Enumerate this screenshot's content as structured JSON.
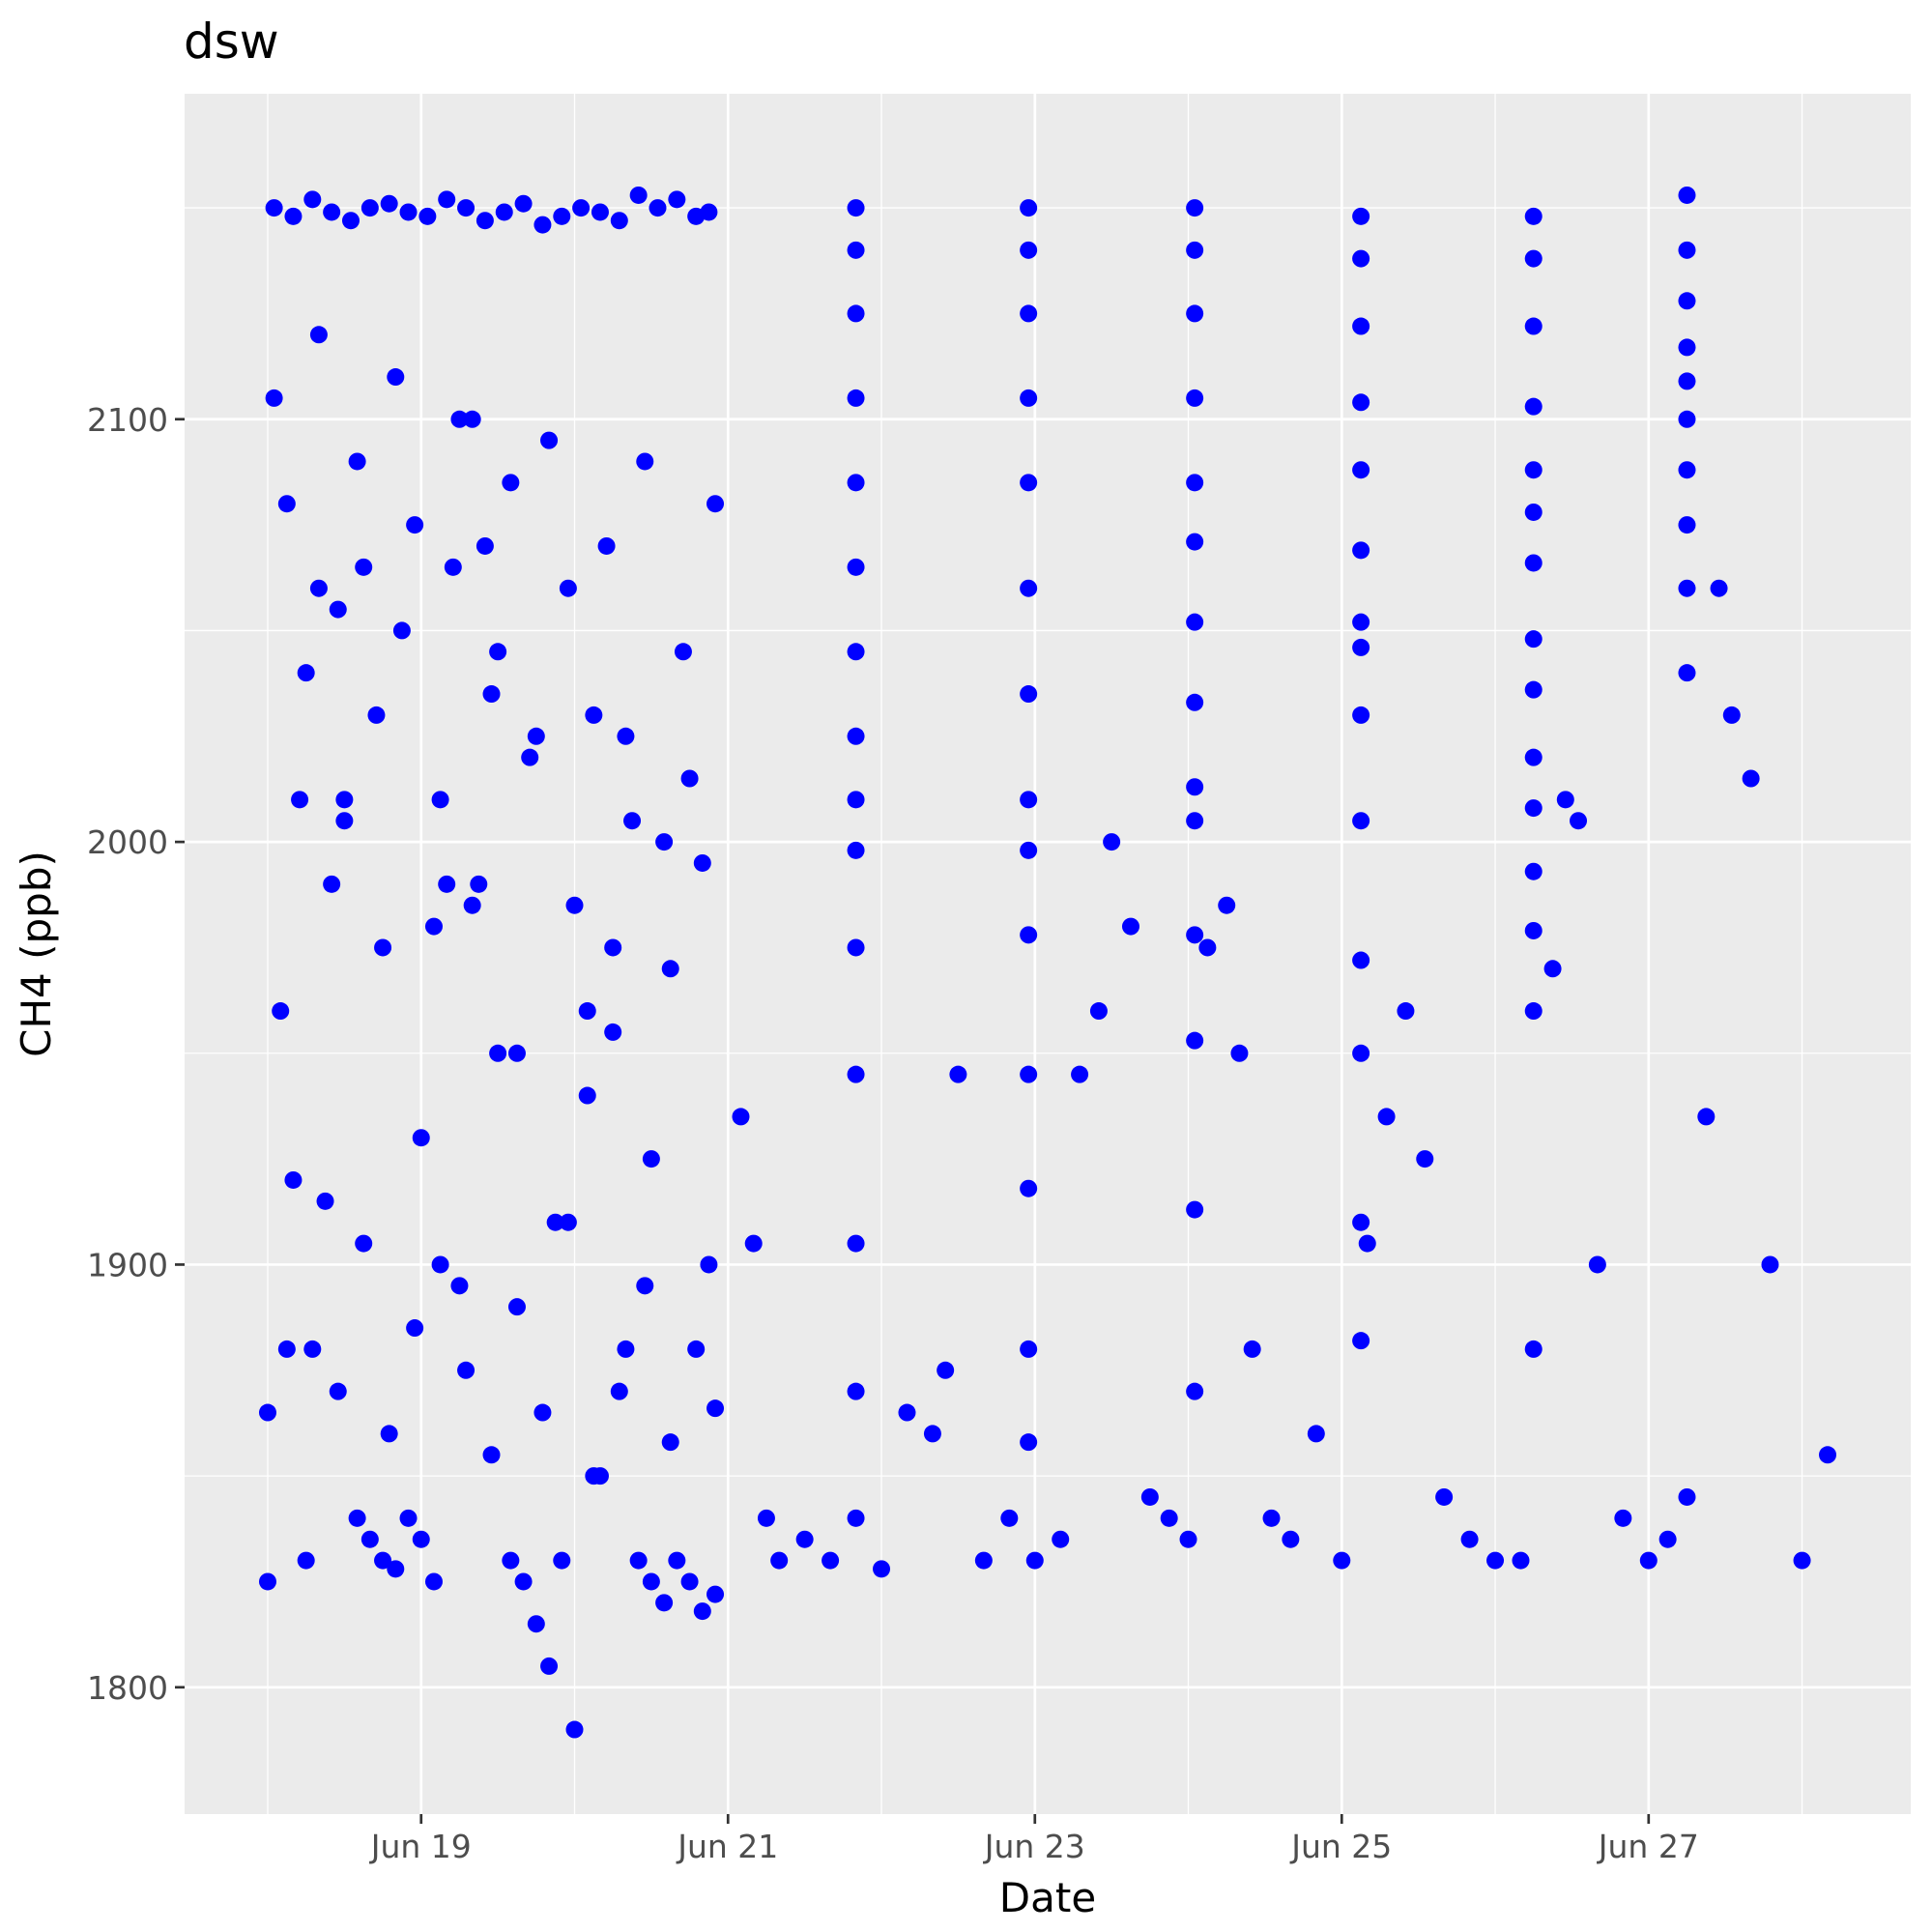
{
  "chart_data": {
    "type": "scatter",
    "title": "dsw",
    "xlabel": "Date",
    "ylabel": "CH4 (ppb)",
    "x_axis_type": "date",
    "xlim": [
      "2021-06-17T11:00",
      "2021-06-28T17:00"
    ],
    "ylim": [
      1770,
      2177
    ],
    "x_ticks": [
      {
        "value": "2021-06-19",
        "label": "Jun 19"
      },
      {
        "value": "2021-06-21",
        "label": "Jun 21"
      },
      {
        "value": "2021-06-23",
        "label": "Jun 23"
      },
      {
        "value": "2021-06-25",
        "label": "Jun 25"
      },
      {
        "value": "2021-06-27",
        "label": "Jun 27"
      }
    ],
    "y_ticks": [
      {
        "value": 1800,
        "label": "1800"
      },
      {
        "value": 1900,
        "label": "1900"
      },
      {
        "value": 2000,
        "label": "2000"
      },
      {
        "value": 2100,
        "label": "2100"
      }
    ],
    "grid": true,
    "legend": "none",
    "series": [
      {
        "color": "#0000ff",
        "x": [
          "2021-06-18T00:00",
          "2021-06-18T03:00",
          "2021-06-18T06:00",
          "2021-06-18T08:00",
          "2021-06-18T10:00",
          "2021-06-18T12:00",
          "2021-06-18T14:00",
          "2021-06-18T16:00",
          "2021-06-18T18:00",
          "2021-06-18T20:00",
          "2021-06-18T22:00",
          "2021-06-19T00:00",
          "2021-06-19T02:00",
          "2021-06-19T04:00",
          "2021-06-19T06:00",
          "2021-06-19T08:00",
          "2021-06-19T10:00",
          "2021-06-19T12:00",
          "2021-06-19T14:00",
          "2021-06-19T16:00",
          "2021-06-19T18:00",
          "2021-06-19T20:00",
          "2021-06-19T22:00",
          "2021-06-20T00:00",
          "2021-06-20T02:00",
          "2021-06-20T04:00",
          "2021-06-20T06:00",
          "2021-06-20T08:00",
          "2021-06-20T10:00",
          "2021-06-20T12:00",
          "2021-06-20T14:00",
          "2021-06-20T16:00",
          "2021-06-20T18:00",
          "2021-06-20T20:00",
          "2021-06-20T22:00",
          "2021-06-21T02:00",
          "2021-06-21T04:00",
          "2021-06-21T06:00",
          "2021-06-21T08:00",
          "2021-06-21T12:00",
          "2021-06-21T16:00",
          "2021-06-21T20:00",
          "2021-06-22T00:00",
          "2021-06-22T04:00",
          "2021-06-22T08:00",
          "2021-06-22T10:00",
          "2021-06-22T12:00",
          "2021-06-22T16:00",
          "2021-06-22T20:00",
          "2021-06-23T00:00",
          "2021-06-23T04:00",
          "2021-06-23T07:00",
          "2021-06-23T10:00",
          "2021-06-23T12:00",
          "2021-06-23T15:00",
          "2021-06-23T18:00",
          "2021-06-23T21:00",
          "2021-06-24T00:00",
          "2021-06-24T03:00",
          "2021-06-24T06:00",
          "2021-06-24T08:00",
          "2021-06-24T10:00",
          "2021-06-24T13:00",
          "2021-06-24T16:00",
          "2021-06-24T20:00",
          "2021-06-25T00:00",
          "2021-06-25T04:00",
          "2021-06-25T07:00",
          "2021-06-25T10:00",
          "2021-06-25T13:00",
          "2021-06-25T16:00",
          "2021-06-25T20:00",
          "2021-06-26T00:00",
          "2021-06-26T04:00",
          "2021-06-26T06:00",
          "2021-06-26T09:00",
          "2021-06-26T11:00",
          "2021-06-26T13:00",
          "2021-06-26T16:00",
          "2021-06-26T20:00",
          "2021-06-27T00:00",
          "2021-06-27T03:00",
          "2021-06-27T06:00",
          "2021-06-27T09:00",
          "2021-06-27T11:00",
          "2021-06-27T13:00",
          "2021-06-27T16:00",
          "2021-06-27T19:00",
          "2021-06-28T00:00",
          "2021-06-28T04:00"
        ],
        "y": [
          1825,
          1880,
          1830,
          2060,
          1990,
          2010,
          1840,
          1835,
          1830,
          1828,
          1840,
          1835,
          1825,
          1990,
          2100,
          1985,
          2070,
          1950,
          1830,
          1825,
          1815,
          1805,
          1830,
          1790,
          1960,
          1850,
          1975,
          1880,
          1830,
          1825,
          1820,
          1830,
          1825,
          1818,
          1822,
          1935,
          1905,
          1840,
          1830,
          1835,
          1830,
          1840,
          1828,
          1865,
          1860,
          1875,
          1945,
          1830,
          1840,
          1830,
          1835,
          1945,
          1960,
          2000,
          1980,
          1845,
          1840,
          1835,
          1975,
          1985,
          1950,
          1880,
          1840,
          1835,
          1860,
          1830,
          1905,
          1935,
          1960,
          1925,
          1845,
          1835,
          1830,
          1830,
          1880,
          1970,
          2010,
          2005,
          1900,
          1840,
          1830,
          1835,
          1845,
          1935,
          2060,
          2030,
          2015,
          1900,
          1830,
          1855
        ]
      },
      {
        "color": "#0000ff",
        "x": [
          "2021-06-18T01:00",
          "2021-06-18T04:00",
          "2021-06-18T07:00",
          "2021-06-18T10:00",
          "2021-06-18T13:00",
          "2021-06-18T16:00",
          "2021-06-18T19:00",
          "2021-06-18T22:00",
          "2021-06-19T01:00",
          "2021-06-19T04:00",
          "2021-06-19T07:00",
          "2021-06-19T10:00",
          "2021-06-19T13:00",
          "2021-06-19T16:00",
          "2021-06-19T19:00",
          "2021-06-19T22:00",
          "2021-06-20T01:00",
          "2021-06-20T04:00",
          "2021-06-20T07:00",
          "2021-06-20T10:00",
          "2021-06-20T13:00",
          "2021-06-20T16:00",
          "2021-06-20T19:00",
          "2021-06-20T21:00"
        ],
        "y": [
          2150,
          2148,
          2152,
          2149,
          2147,
          2150,
          2151,
          2149,
          2148,
          2152,
          2150,
          2147,
          2149,
          2151,
          2146,
          2148,
          2150,
          2149,
          2147,
          2153,
          2150,
          2152,
          2148,
          2149
        ]
      },
      {
        "color": "#0000ff",
        "x": [
          "2021-06-18T01:00",
          "2021-06-18T03:00",
          "2021-06-18T05:00",
          "2021-06-18T08:00",
          "2021-06-18T11:00",
          "2021-06-18T14:00",
          "2021-06-18T17:00",
          "2021-06-18T20:00",
          "2021-06-18T23:00",
          "2021-06-19T02:00",
          "2021-06-19T05:00",
          "2021-06-19T08:00",
          "2021-06-19T11:00",
          "2021-06-19T14:00",
          "2021-06-19T17:00",
          "2021-06-19T20:00",
          "2021-06-19T23:00",
          "2021-06-20T02:00",
          "2021-06-20T05:00",
          "2021-06-20T08:00",
          "2021-06-20T11:00",
          "2021-06-20T14:00",
          "2021-06-20T17:00",
          "2021-06-20T20:00",
          "2021-06-20T22:00",
          "2021-06-18T02:00",
          "2021-06-18T06:00",
          "2021-06-18T09:00",
          "2021-06-18T12:00",
          "2021-06-18T15:00",
          "2021-06-18T18:00",
          "2021-06-18T21:00",
          "2021-06-19T00:00",
          "2021-06-19T03:00",
          "2021-06-19T06:00",
          "2021-06-19T09:00",
          "2021-06-19T12:00",
          "2021-06-19T15:00",
          "2021-06-19T18:00",
          "2021-06-19T21:00",
          "2021-06-20T00:00",
          "2021-06-20T03:00",
          "2021-06-20T06:00",
          "2021-06-20T09:00",
          "2021-06-20T12:00",
          "2021-06-20T15:00",
          "2021-06-20T18:00",
          "2021-06-20T21:00"
        ],
        "y": [
          2105,
          2080,
          2010,
          2120,
          2055,
          2090,
          2030,
          2110,
          2075,
          1980,
          2065,
          2100,
          2035,
          2085,
          2020,
          2095,
          2060,
          1940,
          2070,
          2025,
          2090,
          2000,
          2045,
          1995,
          2080,
          1960,
          2040,
          1915,
          2005,
          2065,
          1975,
          2050,
          1930,
          2010,
          1895,
          1990,
          2045,
          1950,
          2025,
          1910,
          1985,
          2030,
          1955,
          2005,
          1925,
          1970,
          2015,
          1900
        ]
      },
      {
        "color": "#0000ff",
        "x": [
          "2021-06-18T00:00",
          "2021-06-18T04:00",
          "2021-06-18T07:00",
          "2021-06-18T11:00",
          "2021-06-18T15:00",
          "2021-06-18T19:00",
          "2021-06-18T23:00",
          "2021-06-19T03:00",
          "2021-06-19T07:00",
          "2021-06-19T11:00",
          "2021-06-19T15:00",
          "2021-06-19T19:00",
          "2021-06-19T23:00",
          "2021-06-20T03:00",
          "2021-06-20T07:00",
          "2021-06-20T11:00",
          "2021-06-20T15:00",
          "2021-06-20T19:00",
          "2021-06-20T22:00"
        ],
        "y": [
          1865,
          1920,
          1880,
          1870,
          1905,
          1860,
          1885,
          1900,
          1875,
          1855,
          1890,
          1865,
          1910,
          1850,
          1870,
          1895,
          1858,
          1880,
          1866
        ]
      },
      {
        "color": "#0000ff",
        "x": [
          "2021-06-21T20:00",
          "2021-06-21T20:00",
          "2021-06-21T20:00",
          "2021-06-21T20:00",
          "2021-06-21T20:00",
          "2021-06-21T20:00",
          "2021-06-21T20:00",
          "2021-06-21T20:00",
          "2021-06-21T20:00",
          "2021-06-21T20:00",
          "2021-06-21T20:00",
          "2021-06-21T20:00",
          "2021-06-21T20:00",
          "2021-06-21T20:00"
        ],
        "y": [
          2150,
          2140,
          2125,
          2105,
          2085,
          2065,
          2045,
          2025,
          2010,
          1998,
          1975,
          1945,
          1905,
          1870
        ]
      },
      {
        "color": "#0000ff",
        "x": [
          "2021-06-22T23:00",
          "2021-06-22T23:00",
          "2021-06-22T23:00",
          "2021-06-22T23:00",
          "2021-06-22T23:00",
          "2021-06-22T23:00",
          "2021-06-22T23:00",
          "2021-06-22T23:00",
          "2021-06-22T23:00",
          "2021-06-22T23:00",
          "2021-06-22T23:00",
          "2021-06-22T23:00",
          "2021-06-22T23:00",
          "2021-06-22T23:00"
        ],
        "y": [
          2150,
          2140,
          2125,
          2105,
          2085,
          2060,
          2035,
          2010,
          1998,
          1978,
          1945,
          1918,
          1880,
          1858
        ]
      },
      {
        "color": "#0000ff",
        "x": [
          "2021-06-24T01:00",
          "2021-06-24T01:00",
          "2021-06-24T01:00",
          "2021-06-24T01:00",
          "2021-06-24T01:00",
          "2021-06-24T01:00",
          "2021-06-24T01:00",
          "2021-06-24T01:00",
          "2021-06-24T01:00",
          "2021-06-24T01:00",
          "2021-06-24T01:00",
          "2021-06-24T01:00",
          "2021-06-24T01:00",
          "2021-06-24T01:00"
        ],
        "y": [
          2150,
          2140,
          2125,
          2105,
          2085,
          2071,
          2052,
          2033,
          2013,
          2005,
          1978,
          1953,
          1913,
          1870
        ]
      },
      {
        "color": "#0000ff",
        "x": [
          "2021-06-25T03:00",
          "2021-06-25T03:00",
          "2021-06-25T03:00",
          "2021-06-25T03:00",
          "2021-06-25T03:00",
          "2021-06-25T03:00",
          "2021-06-25T03:00",
          "2021-06-25T03:00",
          "2021-06-25T03:00",
          "2021-06-25T03:00",
          "2021-06-25T03:00",
          "2021-06-25T03:00",
          "2021-06-25T03:00",
          "2021-06-25T03:00"
        ],
        "y": [
          2148,
          2138,
          2122,
          2104,
          2088,
          2069,
          2052,
          2046,
          2030,
          2005,
          1972,
          1950,
          1910,
          1882
        ]
      },
      {
        "color": "#0000ff",
        "x": [
          "2021-06-26T06:00",
          "2021-06-26T06:00",
          "2021-06-26T06:00",
          "2021-06-26T06:00",
          "2021-06-26T06:00",
          "2021-06-26T06:00",
          "2021-06-26T06:00",
          "2021-06-26T06:00",
          "2021-06-26T06:00",
          "2021-06-26T06:00",
          "2021-06-26T06:00",
          "2021-06-26T06:00",
          "2021-06-26T06:00",
          "2021-06-26T06:00"
        ],
        "y": [
          2148,
          2138,
          2122,
          2103,
          2088,
          2078,
          2066,
          2048,
          2036,
          2020,
          2008,
          1993,
          1979,
          1960
        ]
      },
      {
        "color": "#0000ff",
        "x": [
          "2021-06-27T06:00",
          "2021-06-27T06:00",
          "2021-06-27T06:00",
          "2021-06-27T06:00",
          "2021-06-27T06:00",
          "2021-06-27T06:00",
          "2021-06-27T06:00",
          "2021-06-27T06:00",
          "2021-06-27T06:00",
          "2021-06-27T06:00"
        ],
        "y": [
          2153,
          2140,
          2128,
          2117,
          2109,
          2100,
          2088,
          2075,
          2060,
          2040
        ]
      }
    ]
  }
}
